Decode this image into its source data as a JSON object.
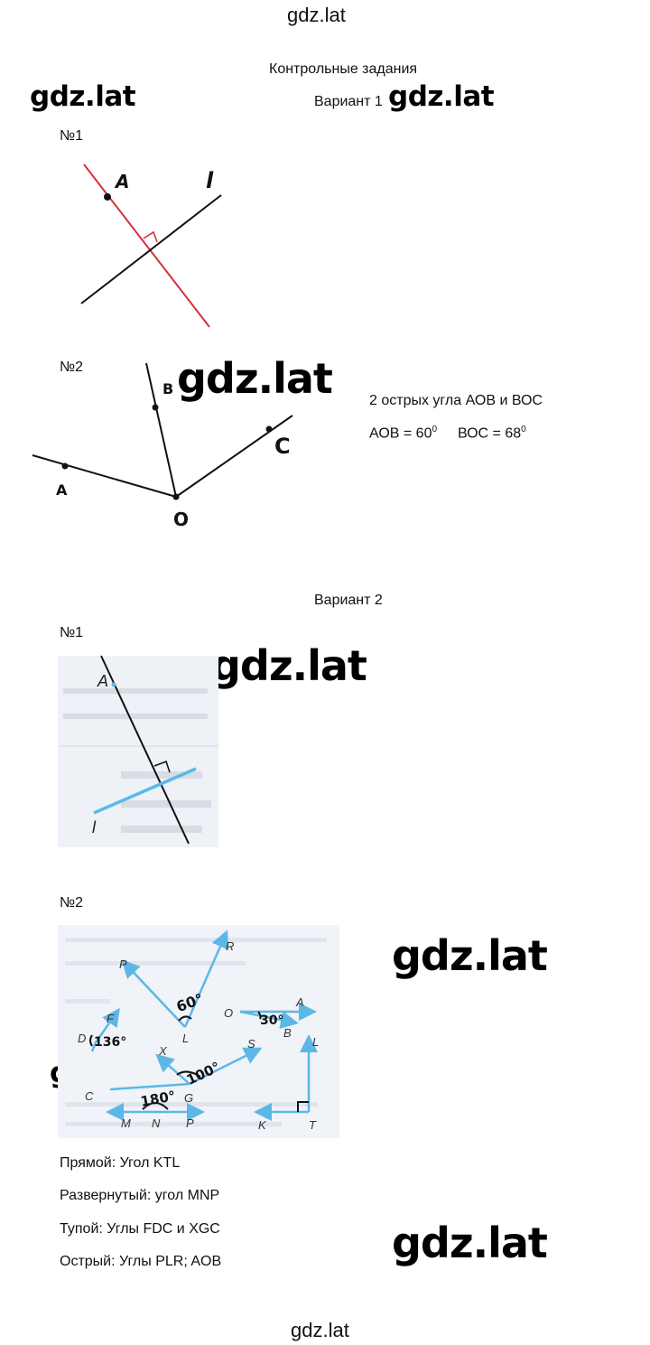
{
  "header": {
    "site_top": "gdz.lat",
    "site_bottom": "gdz.lat"
  },
  "title": "Контрольные задания",
  "watermark": "gdz.lat",
  "variant1": {
    "label": "Вариант 1",
    "task1": {
      "number": "№1",
      "point_label": "A",
      "line_label": "l",
      "colors": {
        "perpendicular": "#d6303a",
        "line": "#111111"
      }
    },
    "task2": {
      "number": "№2",
      "labels": {
        "A": "A",
        "B": "B",
        "C": "C",
        "O": "O"
      },
      "answer_line1": "2 острых угла АОВ и ВОС",
      "answer_line2_a": "АОВ = 60",
      "answer_line2_b": "ВОС = 68",
      "degree": "0"
    }
  },
  "variant2": {
    "label": "Вариант 2",
    "task1": {
      "number": "№1",
      "labels": {
        "A": "A",
        "l": "l"
      },
      "colors": {
        "blue_line": "#5bb8e6"
      }
    },
    "task2": {
      "number": "№2",
      "labels": {
        "P": "P",
        "R": "R",
        "L1": "L",
        "F": "F",
        "D": "D",
        "O": "O",
        "A": "A",
        "B": "B",
        "L2": "L",
        "X": "X",
        "S": "S",
        "G": "G",
        "C": "C",
        "M": "M",
        "N": "N",
        "P2": "P",
        "K": "K",
        "T": "T"
      },
      "angle_marks": {
        "a60": "60°",
        "a30": "30°",
        "a136": "136°",
        "a100": "100°",
        "a180": "180°"
      },
      "answers": [
        "Прямой: Угол KTL",
        "Развернутый: угол MNP",
        "Тупой: Углы FDC и XGC",
        "Острый: Углы PLR; AOB"
      ]
    }
  }
}
